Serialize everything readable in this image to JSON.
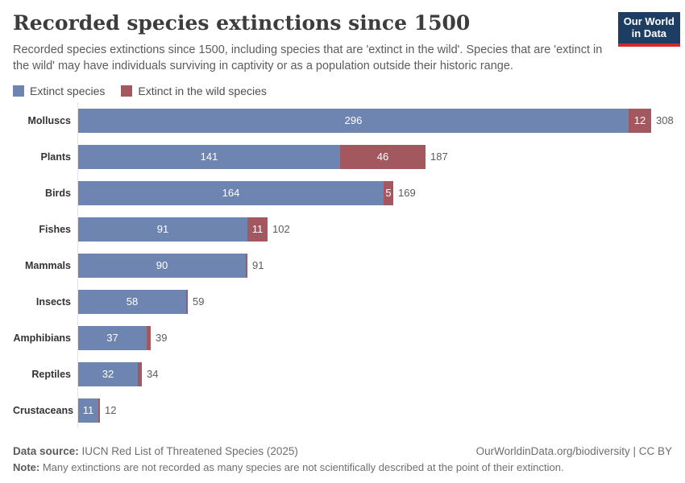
{
  "header": {
    "title": "Recorded species extinctions since 1500",
    "subtitle": "Recorded species extinctions since 1500, including species that are 'extinct in the wild'. Species that are 'extinct in the wild' may have individuals surviving in captivity or as a population outside their historic range.",
    "logo": {
      "line1": "Our World",
      "line2": "in Data"
    }
  },
  "legend": {
    "items": [
      {
        "label": "Extinct species",
        "color": "#6e84b1"
      },
      {
        "label": "Extinct in the wild species",
        "color": "#a3585f"
      }
    ]
  },
  "chart_data": {
    "type": "bar",
    "orientation": "horizontal",
    "stacked": true,
    "title": "Recorded species extinctions since 1500",
    "categories": [
      "Molluscs",
      "Plants",
      "Birds",
      "Fishes",
      "Mammals",
      "Insects",
      "Amphibians",
      "Reptiles",
      "Crustaceans"
    ],
    "series": [
      {
        "name": "Extinct species",
        "color": "#6e84b1",
        "values": [
          296,
          141,
          164,
          91,
          90,
          58,
          37,
          32,
          11
        ]
      },
      {
        "name": "Extinct in the wild species",
        "color": "#a3585f",
        "values": [
          12,
          46,
          5,
          11,
          1,
          1,
          2,
          2,
          1
        ]
      }
    ],
    "totals": [
      308,
      187,
      169,
      102,
      91,
      59,
      39,
      34,
      12
    ],
    "xlim": [
      0,
      308
    ],
    "grid": false,
    "legend_position": "top"
  },
  "footer": {
    "source_label": "Data source:",
    "source_text": " IUCN Red List of Threatened Species (2025)",
    "right_text": "OurWorldinData.org/biodiversity | CC BY",
    "note_label": "Note:",
    "note_text": " Many extinctions are not recorded as many species are not scientifically described at the point of their extinction."
  },
  "colors": {
    "extinct": "#6e84b1",
    "extinct_in_wild": "#a3585f",
    "logo_bg": "#1d3d63",
    "logo_stripe": "#d22a2a",
    "axis_line": "#e3e3e3"
  }
}
